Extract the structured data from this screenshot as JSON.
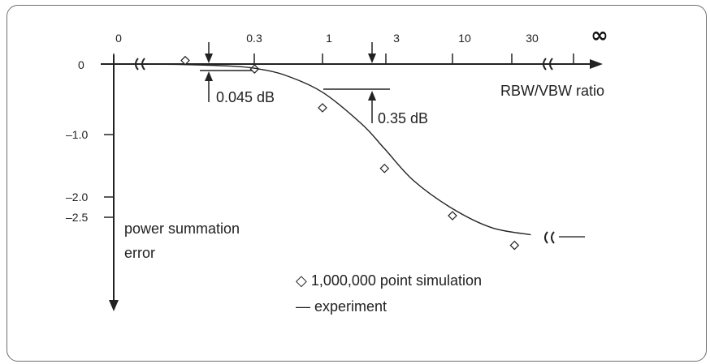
{
  "chart_data": {
    "type": "scatter",
    "xlabel": "RBW/VBW ratio",
    "ylabel": "power summation error",
    "x_scale": "log",
    "x_ticks": [
      "0",
      "0.3",
      "1",
      "3",
      "10",
      "30",
      "∞"
    ],
    "y_ticks": [
      "0",
      "–1.0",
      "–2.0",
      "–2.5"
    ],
    "annotations": [
      {
        "text": "0.045 dB",
        "x": 0.1
      },
      {
        "text": "0.35 dB",
        "x": 2.2
      }
    ],
    "legend": [
      "◇ 1,000,000 point simulation",
      "— experiment"
    ],
    "series": [
      {
        "name": "1,000,000 point simulation",
        "marker": "diamond",
        "points": [
          {
            "x": 0.0,
            "y": 0.05
          },
          {
            "x": 0.3,
            "y": -0.07
          },
          {
            "x": 1,
            "y": -0.62
          },
          {
            "x": 3,
            "y": -1.48
          },
          {
            "x": 10,
            "y": -2.15
          },
          {
            "x": 30,
            "y": -2.57
          }
        ]
      },
      {
        "name": "experiment",
        "marker": "line",
        "points": [
          {
            "x": 0.05,
            "y": 0.0
          },
          {
            "x": 0.1,
            "y": -0.01
          },
          {
            "x": 0.2,
            "y": -0.03
          },
          {
            "x": 0.3,
            "y": -0.06
          },
          {
            "x": 0.5,
            "y": -0.15
          },
          {
            "x": 1,
            "y": -0.4
          },
          {
            "x": 2,
            "y": -0.85
          },
          {
            "x": 3,
            "y": -1.2
          },
          {
            "x": 5,
            "y": -1.65
          },
          {
            "x": 10,
            "y": -2.05
          },
          {
            "x": 20,
            "y": -2.32
          },
          {
            "x": 40,
            "y": -2.42
          },
          {
            "x": "∞",
            "y": -2.45
          }
        ]
      }
    ]
  }
}
